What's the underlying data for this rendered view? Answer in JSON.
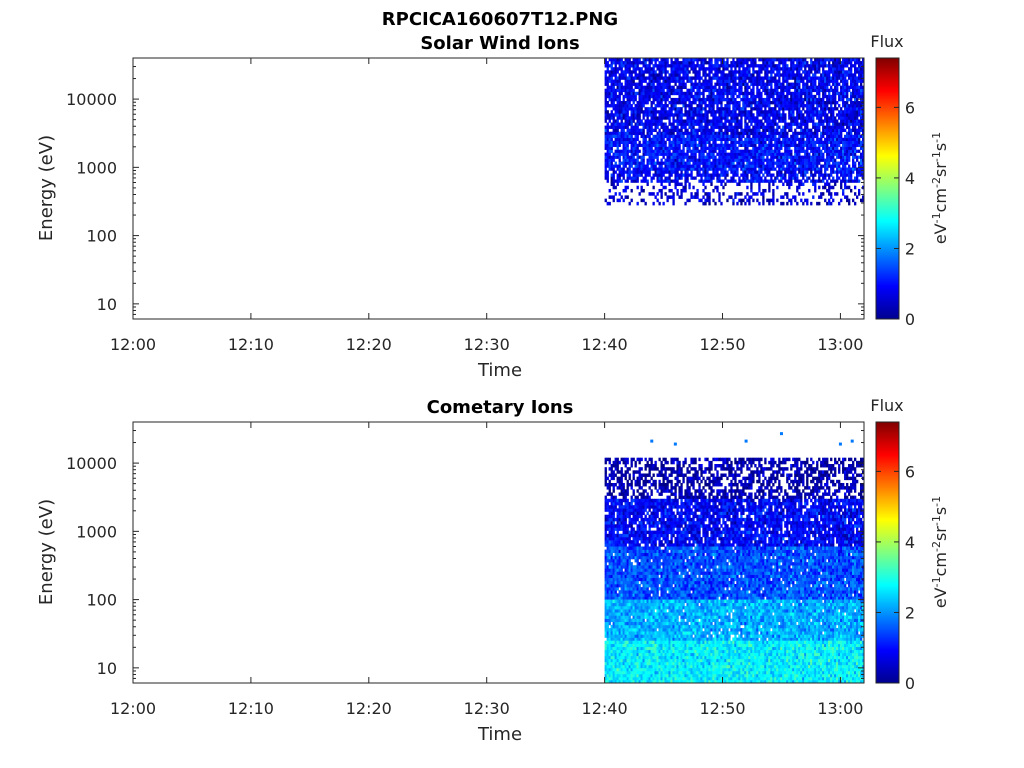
{
  "figure": {
    "title": "RPCICA160607T12.PNG"
  },
  "colormap": "jet",
  "chart_data": [
    {
      "type": "heatmap",
      "title": "Solar Wind Ions",
      "xlabel": "Time",
      "ylabel": "Energy (eV)",
      "x_ticks": [
        "12:00",
        "12:10",
        "12:20",
        "12:30",
        "12:40",
        "12:50",
        "13:00"
      ],
      "xlim": [
        "12:00",
        "13:02"
      ],
      "y_scale": "log",
      "y_ticks": [
        10,
        100,
        1000,
        10000
      ],
      "y_tick_labels": [
        "10",
        "100",
        "1000",
        "10000"
      ],
      "ylim": [
        6,
        40000
      ],
      "colorbar": {
        "title": "Flux",
        "label": "eV-1cm-2sr-1s-1",
        "ticks": [
          0,
          2,
          4,
          6
        ],
        "tick_labels": [
          "0",
          "2",
          "4",
          "6"
        ],
        "range": [
          0,
          7.4
        ]
      },
      "data_time_range": [
        "12:40",
        "13:02"
      ],
      "energy_bands": [
        {
          "range_ev": [
            3000,
            40000
          ],
          "flux_mean": 0.8,
          "fill_fraction": 0.85
        },
        {
          "range_ev": [
            900,
            3000
          ],
          "flux_mean": 1.0,
          "fill_fraction": 0.9
        },
        {
          "range_ev": [
            600,
            900
          ],
          "flux_mean": 0.85,
          "fill_fraction": 0.75
        },
        {
          "range_ev": [
            280,
            600
          ],
          "flux_mean": 0.6,
          "fill_fraction": 0.3
        }
      ],
      "grid": false
    },
    {
      "type": "heatmap",
      "title": "Cometary Ions",
      "xlabel": "Time",
      "ylabel": "Energy (eV)",
      "x_ticks": [
        "12:00",
        "12:10",
        "12:20",
        "12:30",
        "12:40",
        "12:50",
        "13:00"
      ],
      "xlim": [
        "12:00",
        "13:02"
      ],
      "y_scale": "log",
      "y_ticks": [
        10,
        100,
        1000,
        10000
      ],
      "y_tick_labels": [
        "10",
        "100",
        "1000",
        "10000"
      ],
      "ylim": [
        6,
        40000
      ],
      "colorbar": {
        "title": "Flux",
        "label": "eV-1cm-2sr-1s-1",
        "ticks": [
          0,
          2,
          4,
          6
        ],
        "tick_labels": [
          "0",
          "2",
          "4",
          "6"
        ],
        "range": [
          0,
          7.4
        ]
      },
      "data_time_range": [
        "12:40",
        "13:02"
      ],
      "energy_bands": [
        {
          "range_ev": [
            3000,
            12000
          ],
          "flux_mean": 0.3,
          "fill_fraction": 0.6
        },
        {
          "range_ev": [
            600,
            3000
          ],
          "flux_mean": 0.9,
          "fill_fraction": 0.88
        },
        {
          "range_ev": [
            100,
            600
          ],
          "flux_mean": 1.5,
          "fill_fraction": 0.95
        },
        {
          "range_ev": [
            25,
            100
          ],
          "flux_mean": 2.2,
          "fill_fraction": 0.97
        },
        {
          "range_ev": [
            6,
            25
          ],
          "flux_mean": 2.7,
          "fill_fraction": 1.0
        }
      ],
      "isolated_points": [
        {
          "time": "12:44",
          "energy_ev": 21000,
          "flux": 1.8
        },
        {
          "time": "12:46",
          "energy_ev": 19000,
          "flux": 1.8
        },
        {
          "time": "12:52",
          "energy_ev": 21000,
          "flux": 1.8
        },
        {
          "time": "12:55",
          "energy_ev": 27000,
          "flux": 1.8
        },
        {
          "time": "13:00",
          "energy_ev": 19000,
          "flux": 1.8
        },
        {
          "time": "13:01",
          "energy_ev": 21000,
          "flux": 1.8
        }
      ],
      "grid": false
    }
  ]
}
